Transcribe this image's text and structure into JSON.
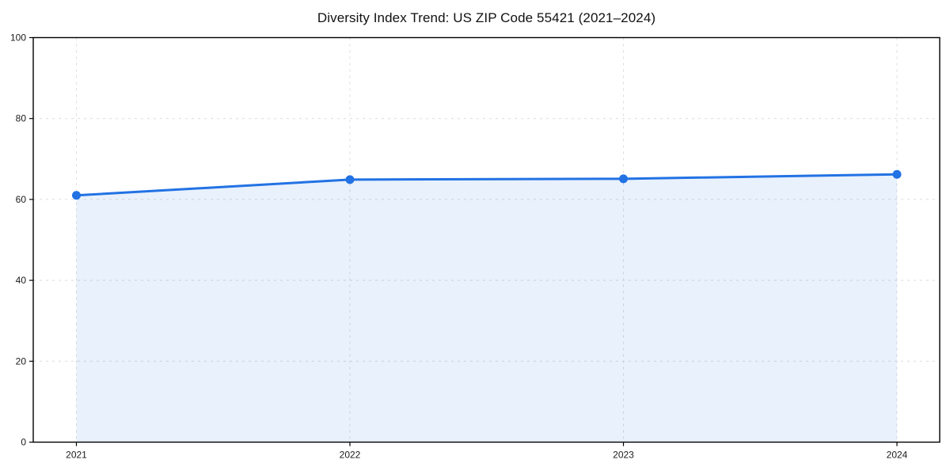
{
  "colors": {
    "line": "#2272e4",
    "marker": "#2272e4",
    "fill": "#2272e4",
    "fill_opacity": 0.1,
    "grid": "#dcdcdc",
    "axis": "#000000",
    "tick_label": "#1a1a1a",
    "title": "#111111",
    "background": "#ffffff"
  },
  "chart_data": {
    "type": "area",
    "title": "Diversity Index Trend: US ZIP Code 55421 (2021–2024)",
    "categories": [
      "2021",
      "2022",
      "2023",
      "2024"
    ],
    "values": [
      61.0,
      64.9,
      65.1,
      66.2
    ],
    "xlabel": "",
    "ylabel": "",
    "ylim": [
      0,
      100
    ],
    "yticks": [
      0,
      20,
      40,
      60,
      80,
      100
    ],
    "grid": {
      "visible": true,
      "style": "dashed",
      "horizontal": true,
      "vertical": true
    },
    "legend": "none",
    "marker": "circle",
    "frame": "box"
  }
}
